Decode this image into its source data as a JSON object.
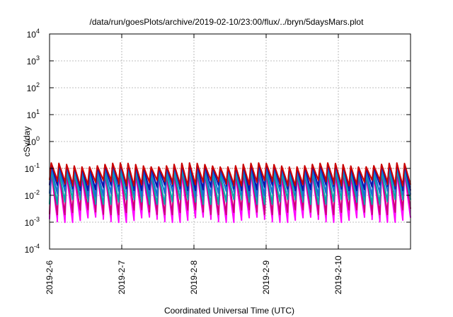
{
  "chart_data": {
    "type": "line",
    "title": "/data/run/goesPlots/archive/2019-02-10/23:00/flux/../bryn/5daysMars.plot",
    "xlabel": "Coordinated Universal Time (UTC)",
    "ylabel": "cSv/day",
    "x_ticks": [
      "2019-2-6",
      "2019-2-7",
      "2019-2-8",
      "2019-2-9",
      "2019-2-10"
    ],
    "y_scale": "log",
    "ylim": [
      0.0001,
      10000
    ],
    "y_ticks": [
      {
        "base": "10",
        "exp": "4"
      },
      {
        "base": "10",
        "exp": "3"
      },
      {
        "base": "10",
        "exp": "2"
      },
      {
        "base": "10",
        "exp": "1"
      },
      {
        "base": "10",
        "exp": "0"
      },
      {
        "base": "10",
        "exp": "-1"
      },
      {
        "base": "10",
        "exp": "-2"
      },
      {
        "base": "10",
        "exp": "-3"
      },
      {
        "base": "10",
        "exp": "-4"
      }
    ],
    "xlim_days": [
      0,
      5
    ],
    "grid": true,
    "cycles": 47,
    "reference_line": 0.1,
    "series": [
      {
        "color": "#ff00ff",
        "peak": 0.07,
        "trough": 0.0013
      },
      {
        "color": "#cc0077",
        "peak": 0.08,
        "trough": 0.0025
      },
      {
        "color": "#00aaaa",
        "peak": 0.09,
        "trough": 0.006
      },
      {
        "color": "#1a6bd6",
        "peak": 0.12,
        "trough": 0.012
      },
      {
        "color": "#1010aa",
        "peak": 0.15,
        "trough": 0.02
      },
      {
        "color": "#cc0000",
        "peak": 0.16,
        "trough": 0.03
      }
    ]
  }
}
